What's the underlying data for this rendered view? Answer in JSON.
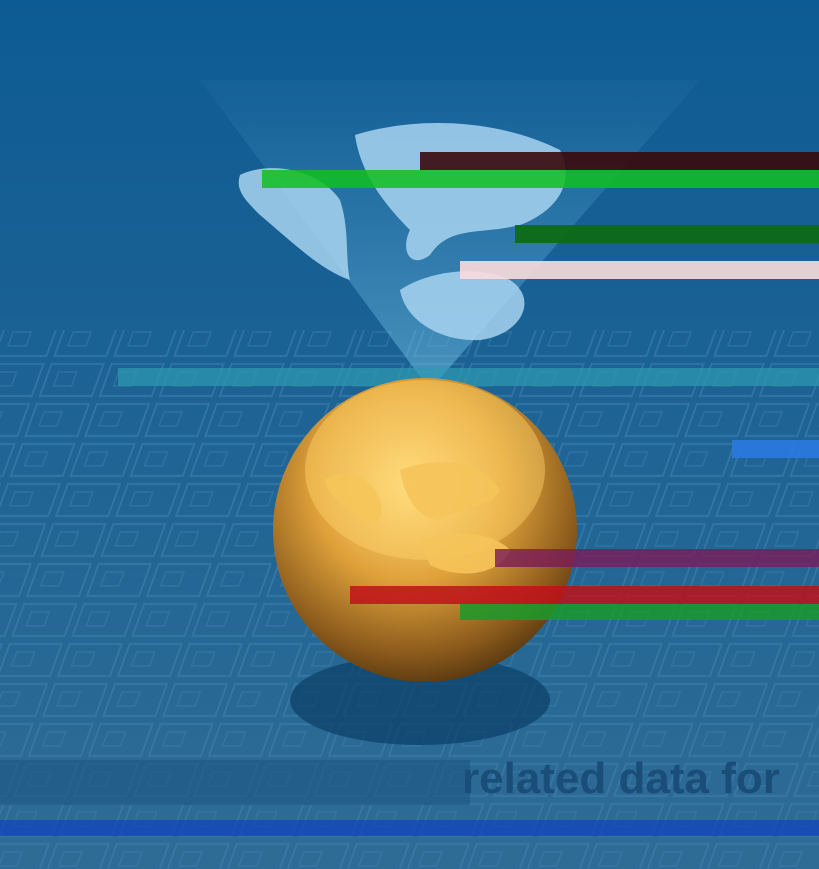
{
  "caption": {
    "text": "related data for"
  }
}
